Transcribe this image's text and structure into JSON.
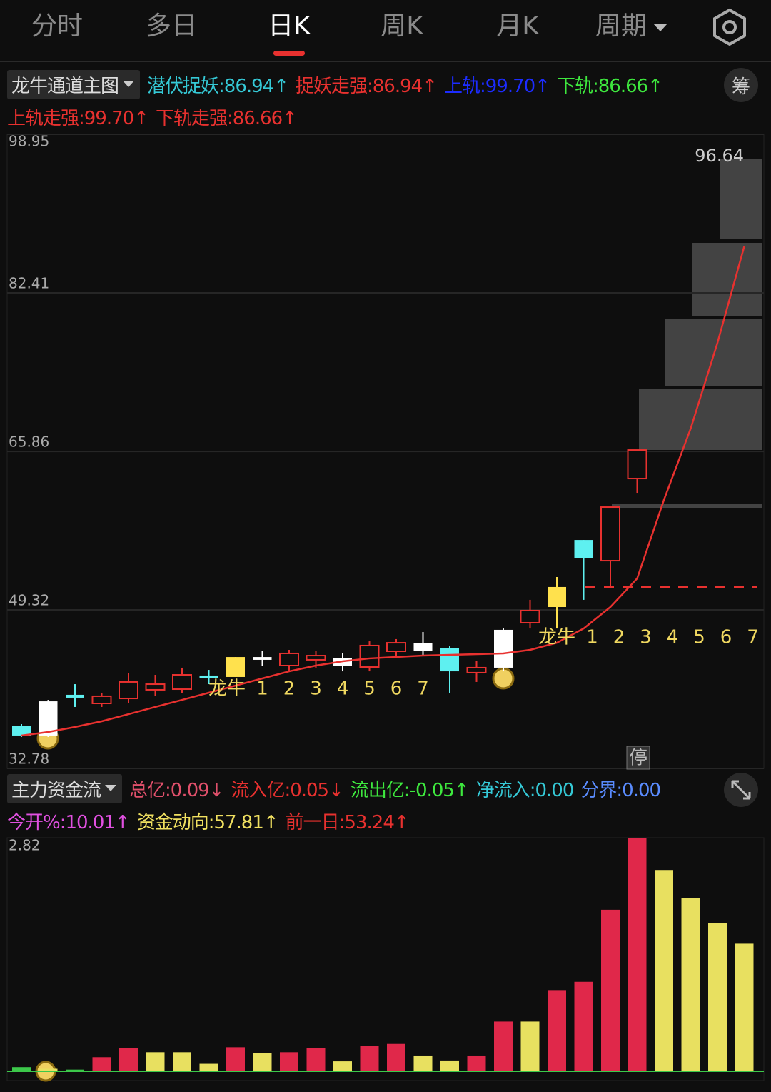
{
  "tabs": [
    "分时",
    "多日",
    "日K",
    "周K",
    "月K",
    "周期"
  ],
  "active_tab": 2,
  "main_indicator": {
    "name": "龙牛通道主图",
    "chip_button": "筹",
    "legend": [
      {
        "text": "潜伏捉妖:86.94↑",
        "color": "#35c9d6"
      },
      {
        "text": "捉妖走强:86.94↑",
        "color": "#e8312f"
      },
      {
        "text": "上轨:99.70↑",
        "color": "#1c2cff"
      },
      {
        "text": "下轨:86.66↑",
        "color": "#3ee83e"
      },
      {
        "text": "上轨走强:99.70↑",
        "color": "#e8312f"
      },
      {
        "text": "下轨走强:86.66↑",
        "color": "#e8312f"
      }
    ]
  },
  "sub_indicator": {
    "name": "主力资金流",
    "legend": [
      {
        "text": "总亿:0.09↓",
        "color": "#e0506b"
      },
      {
        "text": "流入亿:0.05↓",
        "color": "#e8312f"
      },
      {
        "text": "流出亿:-0.05↑",
        "color": "#3ee83e"
      },
      {
        "text": "净流入:0.00",
        "color": "#35c9d6"
      },
      {
        "text": "分界:0.00",
        "color": "#5a8cff"
      },
      {
        "text": "今开%:10.01↑",
        "color": "#e050e0"
      },
      {
        "text": "资金动向:57.81↑",
        "color": "#f0e060"
      },
      {
        "text": "前一日:53.24↑",
        "color": "#e8312f"
      }
    ]
  },
  "chart_data": [
    {
      "type": "candlestick",
      "ylim": [
        32.78,
        98.95
      ],
      "yticks": [
        98.95,
        82.41,
        65.86,
        49.32,
        32.78
      ],
      "grid": true,
      "hollow_color": "#e8312f",
      "open": [
        37.25,
        36.21,
        40.16,
        39.56,
        40.08,
        40.98,
        41.05,
        42.47,
        42.32,
        44.11,
        43.51,
        44.11,
        43.51,
        43.36,
        45.0,
        45.0,
        45.3,
        42.77,
        43.29,
        47.98,
        49.62,
        56.62,
        54.46,
        63.03
      ],
      "close": [
        36.21,
        39.78,
        40.46,
        40.31,
        41.8,
        41.57,
        42.54,
        42.17,
        44.4,
        44.4,
        44.78,
        44.55,
        44.26,
        45.6,
        45.89,
        45.89,
        42.91,
        43.29,
        47.24,
        49.25,
        51.71,
        54.69,
        60.05,
        66.01
      ],
      "high": [
        37.4,
        39.93,
        41.57,
        40.68,
        42.69,
        42.54,
        43.29,
        43.06,
        44.4,
        45.0,
        45.15,
        45.0,
        44.78,
        46.04,
        46.27,
        47.01,
        45.52,
        44.03,
        47.38,
        50.37,
        52.75,
        56.62,
        60.05,
        66.01
      ],
      "low": [
        36.06,
        36.06,
        39.19,
        39.19,
        39.56,
        40.31,
        40.68,
        41.57,
        42.32,
        43.51,
        42.91,
        43.29,
        42.91,
        42.91,
        44.55,
        44.55,
        40.68,
        41.8,
        42.91,
        47.38,
        47.38,
        50.37,
        51.71,
        61.54
      ],
      "colors": [
        "#5ef0f0",
        "#ffffff",
        "#5ef0f0",
        "#e8312f",
        "#e8312f",
        "#e8312f",
        "#e8312f",
        "#5ef0f0",
        "#ffe14d",
        "#ffffff",
        "#e8312f",
        "#e8312f",
        "#ffffff",
        "#e8312f",
        "#e8312f",
        "#ffffff",
        "#5ef0f0",
        "#e8312f",
        "#ffffff",
        "#e8312f",
        "#ffe14d",
        "#5ef0f0",
        "#e8312f",
        "#e8312f"
      ],
      "line": {
        "color": "#e8312f",
        "values": [
          36.21,
          36.58,
          37.1,
          37.7,
          38.44,
          39.19,
          39.93,
          40.68,
          41.42,
          42.17,
          42.91,
          43.51,
          43.96,
          44.26,
          44.4,
          44.55,
          44.63,
          44.7,
          44.78,
          45.15,
          45.89,
          47.38,
          49.62,
          52.6,
          60.8,
          68.25,
          77.19,
          87.25
        ]
      },
      "level": 51.71,
      "peak_label": 96.64,
      "halt_label": "停",
      "signals": [
        [
          "龙牛",
          "1",
          "2",
          "3",
          "4",
          "5",
          "6",
          "7"
        ],
        [
          "龙牛",
          "1",
          "2",
          "3",
          "4",
          "5",
          "6",
          "7"
        ]
      ]
    },
    {
      "type": "bar",
      "ylim": [
        0,
        2.82
      ],
      "yticks": [
        2.82
      ],
      "values": [
        0.05,
        0.03,
        0.02,
        0.17,
        0.28,
        0.23,
        0.23,
        0.09,
        0.29,
        0.22,
        0.23,
        0.28,
        0.12,
        0.31,
        0.33,
        0.19,
        0.13,
        0.19,
        0.6,
        0.6,
        0.98,
        1.08,
        1.95,
        2.82,
        2.43,
        2.09,
        1.79,
        1.54
      ],
      "colors": [
        "#3cc84a",
        "#e8e060",
        "#3cc84a",
        "#e0284a",
        "#e0284a",
        "#e8e060",
        "#e8e060",
        "#e8e060",
        "#e0284a",
        "#e8e060",
        "#e0284a",
        "#e0284a",
        "#e8e060",
        "#e0284a",
        "#e0284a",
        "#e8e060",
        "#e8e060",
        "#e0284a",
        "#e0284a",
        "#e8e060",
        "#e0284a",
        "#e0284a",
        "#e0284a",
        "#e0284a",
        "#e8e060",
        "#e8e060",
        "#e8e060",
        "#e8e060"
      ]
    }
  ]
}
